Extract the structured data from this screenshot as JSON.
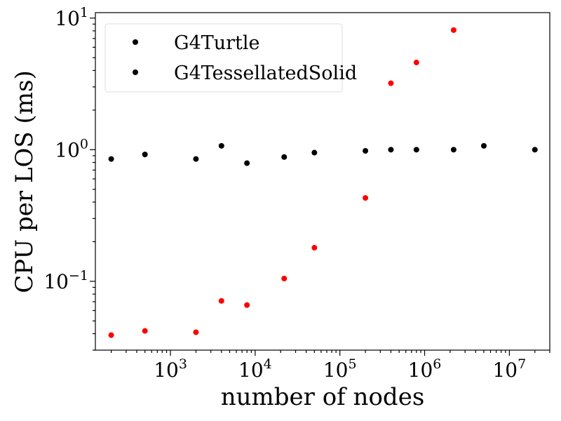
{
  "chart_data": {
    "type": "scatter",
    "xlabel": "number of nodes",
    "ylabel": "CPU per LOS (ms)",
    "xscale": "log",
    "yscale": "log",
    "xlim": [
      130,
      30000000
    ],
    "ylim": [
      0.03,
      11
    ],
    "grid": false,
    "legend_position": "top-left",
    "x_ticks": [
      {
        "base": "10",
        "exp": "3",
        "value": 1000
      },
      {
        "base": "10",
        "exp": "4",
        "value": 10000
      },
      {
        "base": "10",
        "exp": "5",
        "value": 100000
      },
      {
        "base": "10",
        "exp": "6",
        "value": 1000000
      },
      {
        "base": "10",
        "exp": "7",
        "value": 10000000
      }
    ],
    "y_ticks": [
      {
        "base": "10",
        "exp": "−1",
        "value": 0.1
      },
      {
        "base": "10",
        "exp": "0",
        "value": 1
      },
      {
        "base": "10",
        "exp": "1",
        "value": 10
      }
    ],
    "series": [
      {
        "name": "G4Turtle",
        "color": "#000000",
        "x": [
          200,
          500,
          2000,
          4000,
          8000,
          22000,
          50000,
          200000,
          400000,
          800000,
          2200000,
          5000000,
          20000000
        ],
        "y": [
          0.85,
          0.92,
          0.85,
          1.07,
          0.79,
          0.88,
          0.95,
          0.98,
          1.0,
          1.0,
          1.0,
          1.07,
          1.0
        ]
      },
      {
        "name": "G4TessellatedSolid",
        "color": "#ff0000",
        "x": [
          200,
          500,
          2000,
          4000,
          8000,
          22000,
          50000,
          200000,
          400000,
          800000,
          2200000
        ],
        "y": [
          0.039,
          0.042,
          0.041,
          0.071,
          0.066,
          0.105,
          0.18,
          0.43,
          3.2,
          4.6,
          8.1
        ]
      }
    ]
  }
}
